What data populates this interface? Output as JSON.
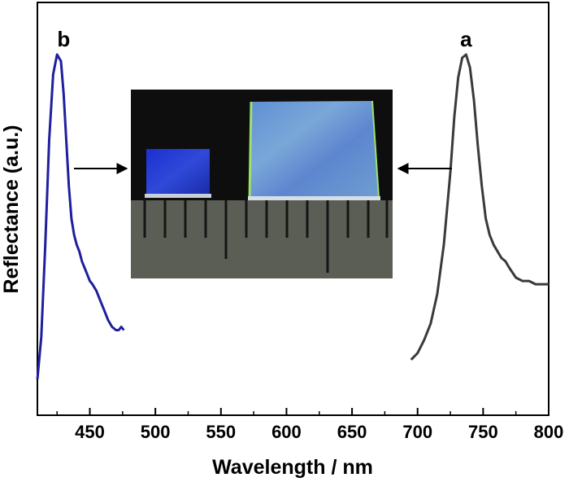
{
  "chart_data": {
    "type": "line",
    "xlabel": "Wavelength / nm",
    "ylabel": "Reflectance (a.u.)",
    "xlim": [
      410,
      800
    ],
    "ylim": [
      0,
      1
    ],
    "xticks": [
      450,
      500,
      550,
      600,
      650,
      700,
      750,
      800
    ],
    "yticks": [],
    "grid": false,
    "legend": "none",
    "series": [
      {
        "name": "b",
        "color": "#1f1f9e",
        "x": [
          410,
          413,
          416,
          419,
          422,
          425,
          428,
          430,
          432,
          434,
          436,
          438,
          440,
          442,
          444,
          446,
          448,
          450,
          452,
          455,
          458,
          461,
          464,
          467,
          470,
          472,
          474,
          476
        ],
        "y": [
          0.01,
          0.14,
          0.42,
          0.74,
          0.94,
          1.0,
          0.98,
          0.88,
          0.74,
          0.6,
          0.5,
          0.45,
          0.42,
          0.4,
          0.37,
          0.35,
          0.33,
          0.31,
          0.3,
          0.28,
          0.25,
          0.22,
          0.19,
          0.17,
          0.16,
          0.16,
          0.17,
          0.16
        ]
      },
      {
        "name": "a",
        "color": "#3a3a3a",
        "x": [
          695,
          700,
          705,
          710,
          715,
          720,
          725,
          728,
          731,
          734,
          737,
          740,
          743,
          746,
          749,
          752,
          755,
          758,
          761,
          764,
          767,
          770,
          775,
          780,
          785,
          790,
          795,
          800
        ],
        "y": [
          0.07,
          0.09,
          0.13,
          0.18,
          0.27,
          0.42,
          0.64,
          0.81,
          0.93,
          0.99,
          1.0,
          0.96,
          0.86,
          0.72,
          0.6,
          0.5,
          0.45,
          0.42,
          0.4,
          0.38,
          0.37,
          0.35,
          0.32,
          0.31,
          0.31,
          0.3,
          0.3,
          0.3
        ]
      }
    ],
    "annotations": [
      {
        "text": "b",
        "series": "b",
        "x": 430,
        "y": 1.0
      },
      {
        "text": "a",
        "series": "a",
        "x": 737,
        "y": 1.0
      }
    ],
    "inset_photo": {
      "description_colors": {
        "background": "#0d0d0d",
        "small_sample": "#1f3cc8",
        "large_sample": "#6a9ad2",
        "ruler": "#5b5e55"
      },
      "arrows": [
        {
          "from_series": "b"
        },
        {
          "from_series": "a"
        }
      ]
    }
  }
}
